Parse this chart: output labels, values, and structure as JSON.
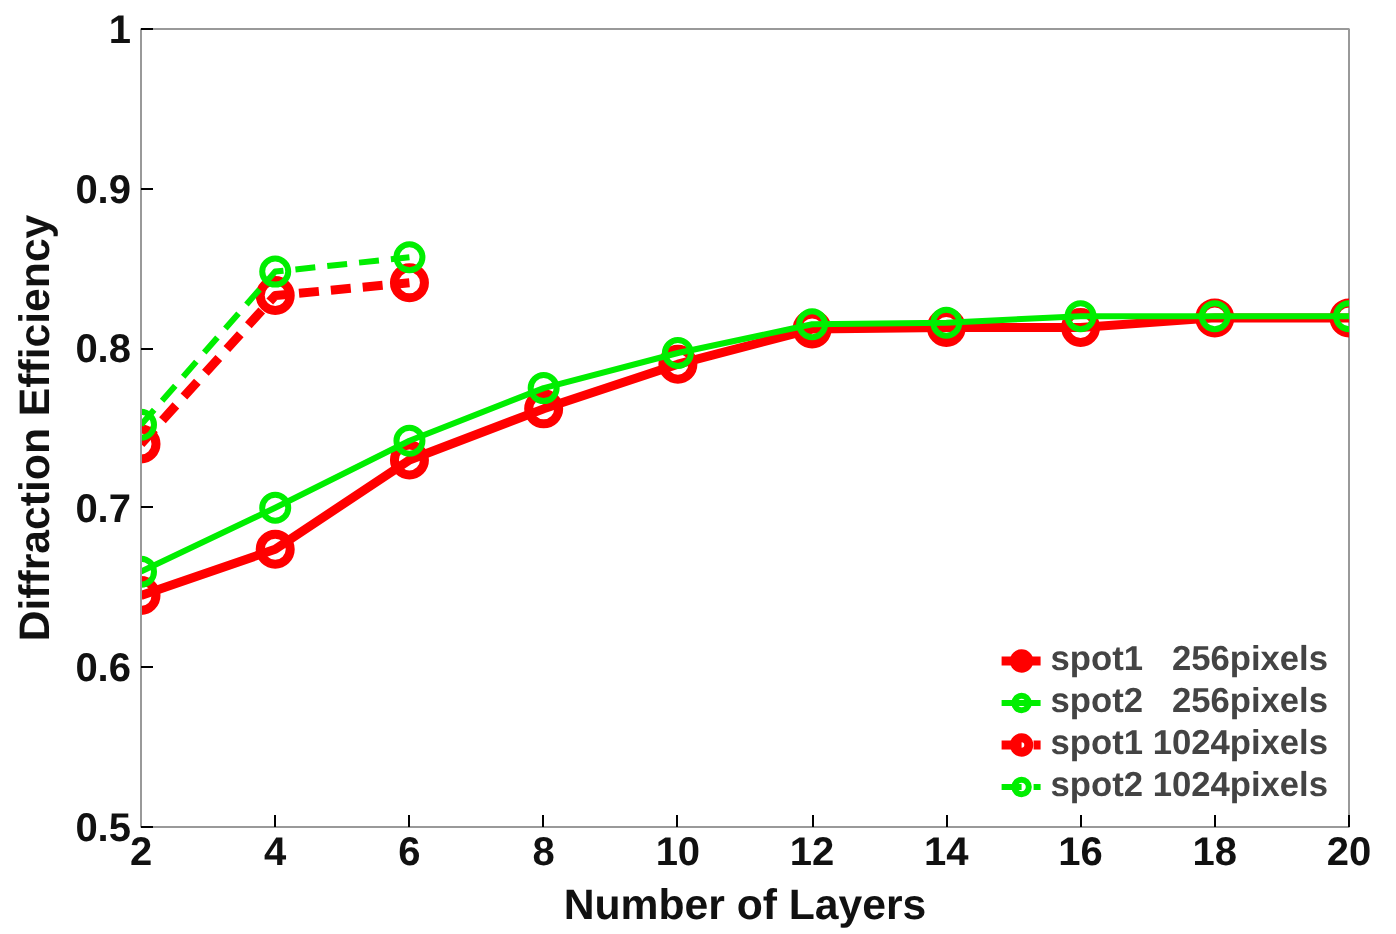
{
  "chart_data": {
    "type": "line",
    "xlabel": "Number of Layers",
    "ylabel": "Diffraction Efficiency",
    "x": [
      2,
      4,
      6,
      8,
      10,
      12,
      14,
      16,
      18,
      20
    ],
    "series": [
      {
        "name": "spot1   256pixels",
        "color": "#ff0000",
        "line_style": "solid",
        "values": [
          0.645,
          0.674,
          0.73,
          0.762,
          0.79,
          0.812,
          0.813,
          0.813,
          0.819,
          0.819
        ]
      },
      {
        "name": "spot2   256pixels",
        "color": "#00ee00",
        "line_style": "solid",
        "values": [
          0.66,
          0.7,
          0.742,
          0.775,
          0.797,
          0.815,
          0.816,
          0.82,
          0.82,
          0.82
        ]
      },
      {
        "name": "spot1 1024pixels",
        "color": "#ff0000",
        "line_style": "dashed",
        "x": [
          2,
          4,
          6
        ],
        "values": [
          0.74,
          0.833,
          0.841
        ]
      },
      {
        "name": "spot2 1024pixels",
        "color": "#00ee00",
        "line_style": "dashed",
        "x": [
          2,
          4,
          6
        ],
        "values": [
          0.752,
          0.848,
          0.857
        ]
      }
    ],
    "xlim": [
      2,
      20
    ],
    "xticks": [
      2,
      4,
      6,
      8,
      10,
      12,
      14,
      16,
      18,
      20
    ],
    "ylim": [
      0.5,
      1
    ],
    "yticks": [
      0.5,
      0.6,
      0.7,
      0.8,
      0.9,
      1
    ],
    "grid": false,
    "legend": "bottom right",
    "marker": "circle"
  }
}
